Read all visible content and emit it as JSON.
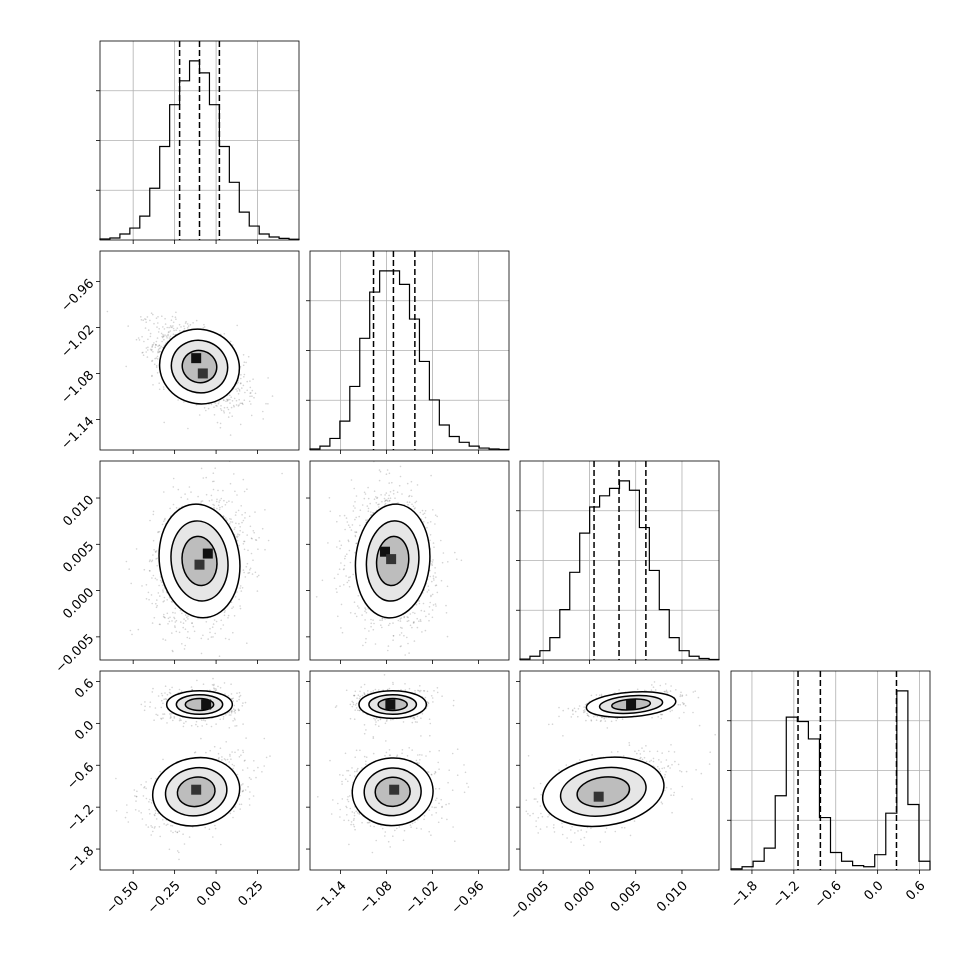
{
  "chart_data": {
    "type": "corner",
    "grid": true,
    "params": [
      {
        "index": 0,
        "range": [
          -0.7,
          0.5
        ],
        "ticks": [
          -0.5,
          -0.25,
          0.0,
          0.25
        ],
        "tick_labels": [
          "−0.50",
          "−0.25",
          "0.00",
          "0.25"
        ],
        "hist": [
          0.005,
          0.01,
          0.03,
          0.06,
          0.12,
          0.26,
          0.47,
          0.68,
          0.8,
          0.9,
          0.84,
          0.68,
          0.47,
          0.29,
          0.14,
          0.07,
          0.03,
          0.015,
          0.008,
          0.004
        ],
        "quantiles": [
          -0.22,
          -0.1,
          0.02
        ]
      },
      {
        "index": 1,
        "range": [
          -1.18,
          -0.92
        ],
        "ticks": [
          -1.14,
          -1.08,
          -1.02,
          -0.96
        ],
        "tick_labels": [
          "−1.14",
          "−1.08",
          "−1.02",
          "−0.96"
        ],
        "hist": [
          0.005,
          0.02,
          0.06,
          0.15,
          0.33,
          0.58,
          0.82,
          0.93,
          0.93,
          0.86,
          0.68,
          0.46,
          0.26,
          0.13,
          0.07,
          0.04,
          0.02,
          0.01,
          0.005,
          0.003
        ],
        "quantiles": [
          -1.097,
          -1.071,
          -1.043
        ]
      },
      {
        "index": 2,
        "range": [
          -0.0075,
          0.014
        ],
        "ticks": [
          -0.005,
          0.0,
          0.005,
          0.01
        ],
        "tick_labels": [
          "−0.005",
          "0.000",
          "0.005",
          "0.010"
        ],
        "hist": [
          0.005,
          0.02,
          0.05,
          0.12,
          0.27,
          0.47,
          0.68,
          0.82,
          0.88,
          0.92,
          0.96,
          0.91,
          0.71,
          0.48,
          0.27,
          0.12,
          0.05,
          0.02,
          0.008,
          0.003
        ],
        "quantiles": [
          0.0005,
          0.0032,
          0.0061
        ]
      },
      {
        "index": 3,
        "range": [
          -2.1,
          0.75
        ],
        "ticks": [
          -1.8,
          -1.2,
          -0.6,
          0.0,
          0.6
        ],
        "tick_labels": [
          "−1.8",
          "−1.2",
          "−0.6",
          "0.0",
          "0.6"
        ],
        "hist": [
          0.005,
          0.015,
          0.04,
          0.1,
          0.34,
          0.7,
          0.68,
          0.6,
          0.24,
          0.08,
          0.04,
          0.02,
          0.015,
          0.07,
          0.26,
          0.82,
          0.3,
          0.04
        ],
        "quantiles": [
          -1.14,
          -0.82,
          0.27
        ]
      }
    ],
    "joint": [
      {
        "row": 1,
        "col": 0,
        "modes": [
          {
            "cx": -0.1,
            "cy": -1.071,
            "sx": 0.11,
            "sy": 0.022,
            "rho": -0.55,
            "w": 1
          }
        ],
        "peak_cells": [
          [
            -0.12,
            -1.06
          ],
          [
            -0.08,
            -1.08
          ]
        ]
      },
      {
        "row": 2,
        "col": 0,
        "modes": [
          {
            "cx": -0.1,
            "cy": 0.0032,
            "sx": 0.11,
            "sy": 0.0028,
            "rho": 0.15,
            "w": 1
          }
        ],
        "peak_cells": [
          [
            -0.05,
            0.004
          ],
          [
            -0.1,
            0.0028
          ]
        ]
      },
      {
        "row": 2,
        "col": 1,
        "modes": [
          {
            "cx": -1.072,
            "cy": 0.0032,
            "sx": 0.022,
            "sy": 0.0028,
            "rho": -0.1,
            "w": 1
          }
        ],
        "peak_cells": [
          [
            -1.082,
            0.0042
          ],
          [
            -1.074,
            0.0034
          ]
        ]
      },
      {
        "row": 3,
        "col": 0,
        "modes": [
          {
            "cx": -0.1,
            "cy": 0.27,
            "sx": 0.09,
            "sy": 0.09,
            "rho": 0.0,
            "w": 0.45
          },
          {
            "cx": -0.12,
            "cy": -0.98,
            "sx": 0.12,
            "sy": 0.22,
            "rho": 0.4,
            "w": 0.55
          }
        ],
        "peak_cells": [
          [
            -0.06,
            0.27
          ],
          [
            -0.12,
            -0.95
          ]
        ]
      },
      {
        "row": 3,
        "col": 1,
        "modes": [
          {
            "cx": -1.072,
            "cy": 0.27,
            "sx": 0.02,
            "sy": 0.09,
            "rho": 0.0,
            "w": 0.45
          },
          {
            "cx": -1.072,
            "cy": -0.98,
            "sx": 0.024,
            "sy": 0.22,
            "rho": 0.1,
            "w": 0.55
          }
        ],
        "peak_cells": [
          [
            -1.075,
            0.27
          ],
          [
            -1.07,
            -0.95
          ]
        ]
      },
      {
        "row": 3,
        "col": 2,
        "modes": [
          {
            "cx": 0.0045,
            "cy": 0.27,
            "sx": 0.0022,
            "sy": 0.08,
            "rho": 0.45,
            "w": 0.45
          },
          {
            "cx": 0.0015,
            "cy": -0.98,
            "sx": 0.003,
            "sy": 0.22,
            "rho": 0.45,
            "w": 0.55
          }
        ],
        "peak_cells": [
          [
            0.0045,
            0.27
          ],
          [
            0.001,
            -1.05
          ]
        ]
      }
    ]
  }
}
